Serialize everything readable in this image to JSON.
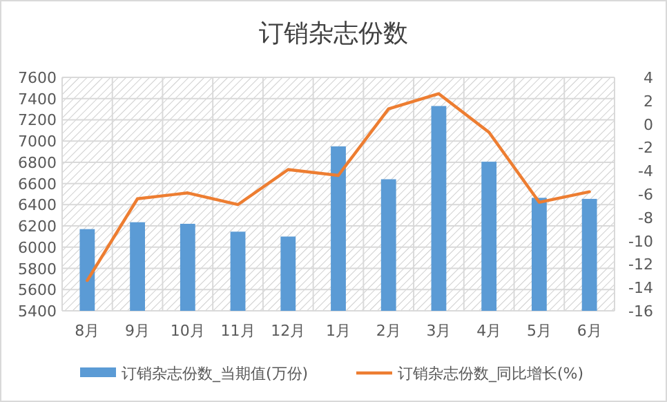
{
  "chart_data": {
    "type": "bar",
    "title": "订销杂志份数",
    "categories": [
      "8月",
      "9月",
      "10月",
      "11月",
      "12月",
      "1月",
      "2月",
      "3月",
      "4月",
      "5月",
      "6月"
    ],
    "series": [
      {
        "name": "订销杂志份数_当期值(万份)",
        "color": "#5b9bd5",
        "values": [
          6170,
          6235,
          6220,
          6146,
          6100,
          6950,
          6640,
          7330,
          6805,
          6465,
          6455
        ]
      },
      {
        "name": "订销杂志份数_同比增长(%)",
        "type": "line",
        "axis": "y2",
        "color": "#ed7d31",
        "values": [
          -13.4,
          -6.4,
          -5.9,
          -6.9,
          -3.9,
          -4.4,
          1.3,
          2.6,
          -0.7,
          -6.7,
          -5.8
        ]
      }
    ],
    "ylim": [
      5400,
      7600
    ],
    "yticks": [
      5400,
      5600,
      5800,
      6000,
      6200,
      6400,
      6600,
      6800,
      7000,
      7200,
      7400,
      7600
    ],
    "y2lim": [
      -16,
      4
    ],
    "y2ticks": [
      -16,
      -14,
      -12,
      -10,
      -8,
      -6,
      -4,
      -2,
      0,
      2,
      4
    ],
    "grid": true,
    "legend": "bottom"
  }
}
